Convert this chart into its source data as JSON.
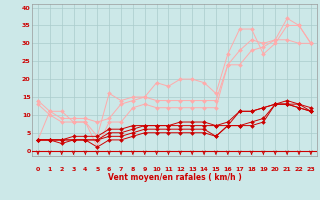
{
  "xlabel": "Vent moyen/en rafales ( km/h )",
  "xlim": [
    -0.5,
    23.5
  ],
  "ylim": [
    -1.5,
    41
  ],
  "yticks": [
    0,
    5,
    10,
    15,
    20,
    25,
    30,
    35,
    40
  ],
  "xticks": [
    0,
    1,
    2,
    3,
    4,
    5,
    6,
    7,
    8,
    9,
    10,
    11,
    12,
    13,
    14,
    15,
    16,
    17,
    18,
    19,
    20,
    21,
    22,
    23
  ],
  "bg_color": "#cce8e8",
  "grid_color": "#aacccc",
  "line1_x": [
    0,
    1,
    2,
    3,
    4,
    5,
    6,
    7,
    8,
    9,
    10,
    11,
    12,
    13,
    14,
    15,
    16,
    17,
    18,
    19,
    20,
    21,
    22,
    23
  ],
  "line1_y": [
    3,
    3,
    3,
    3,
    3,
    1,
    3,
    3,
    4,
    5,
    5,
    5,
    5,
    5,
    5,
    4,
    7,
    7,
    7,
    8,
    13,
    13,
    12,
    11
  ],
  "line1_color": "#cc0000",
  "line2_x": [
    0,
    1,
    2,
    3,
    4,
    5,
    6,
    7,
    8,
    9,
    10,
    11,
    12,
    13,
    14,
    15,
    16,
    17,
    18,
    19,
    20,
    21,
    22,
    23
  ],
  "line2_y": [
    3,
    3,
    3,
    3,
    3,
    3,
    4,
    4,
    5,
    6,
    6,
    6,
    6,
    6,
    6,
    4,
    7,
    7,
    8,
    9,
    13,
    13,
    12,
    11
  ],
  "line2_color": "#cc0000",
  "line3_x": [
    0,
    1,
    2,
    3,
    4,
    5,
    6,
    7,
    8,
    9,
    10,
    11,
    12,
    13,
    14,
    15,
    16,
    17,
    18,
    19,
    20,
    21,
    22,
    23
  ],
  "line3_y": [
    3,
    3,
    2,
    3,
    3,
    3,
    5,
    5,
    6,
    7,
    7,
    7,
    7,
    7,
    7,
    7,
    7,
    11,
    11,
    12,
    13,
    13,
    13,
    11
  ],
  "line3_color": "#cc0000",
  "line4_x": [
    0,
    1,
    2,
    3,
    4,
    5,
    6,
    7,
    8,
    9,
    10,
    11,
    12,
    13,
    14,
    15,
    16,
    17,
    18,
    19,
    20,
    21,
    22,
    23
  ],
  "line4_y": [
    3,
    3,
    3,
    4,
    4,
    4,
    6,
    6,
    7,
    7,
    7,
    7,
    8,
    8,
    8,
    7,
    8,
    11,
    11,
    12,
    13,
    14,
    13,
    12
  ],
  "line4_color": "#cc0000",
  "line5_x": [
    0,
    1,
    2,
    3,
    4,
    5,
    6,
    7,
    8,
    9,
    10,
    11,
    12,
    13,
    14,
    15,
    16,
    17,
    18,
    19,
    20,
    21,
    22,
    23
  ],
  "line5_y": [
    14,
    11,
    9,
    9,
    9,
    8,
    9,
    13,
    14,
    15,
    19,
    18,
    20,
    20,
    19,
    16,
    27,
    34,
    34,
    27,
    30,
    35,
    35,
    30
  ],
  "line5_color": "#ffaaaa",
  "line6_x": [
    0,
    1,
    2,
    3,
    4,
    5,
    6,
    7,
    8,
    9,
    10,
    11,
    12,
    13,
    14,
    15,
    16,
    17,
    18,
    19,
    20,
    21,
    22,
    23
  ],
  "line6_y": [
    13,
    10,
    8,
    8,
    8,
    4,
    16,
    14,
    15,
    15,
    14,
    14,
    14,
    14,
    14,
    14,
    24,
    24,
    28,
    29,
    31,
    37,
    35,
    30
  ],
  "line6_color": "#ffaaaa",
  "line7_x": [
    0,
    1,
    2,
    3,
    4,
    5,
    6,
    7,
    8,
    9,
    10,
    11,
    12,
    13,
    14,
    15,
    16,
    17,
    18,
    19,
    20,
    21,
    22,
    23
  ],
  "line7_y": [
    3,
    11,
    11,
    8,
    8,
    1,
    8,
    8,
    12,
    13,
    12,
    12,
    12,
    12,
    12,
    12,
    24,
    28,
    31,
    30,
    31,
    31,
    30,
    30
  ],
  "line7_color": "#ffaaaa",
  "arrow_color": "#cc0000",
  "marker": "D",
  "markersize": 2,
  "linewidth": 0.7
}
